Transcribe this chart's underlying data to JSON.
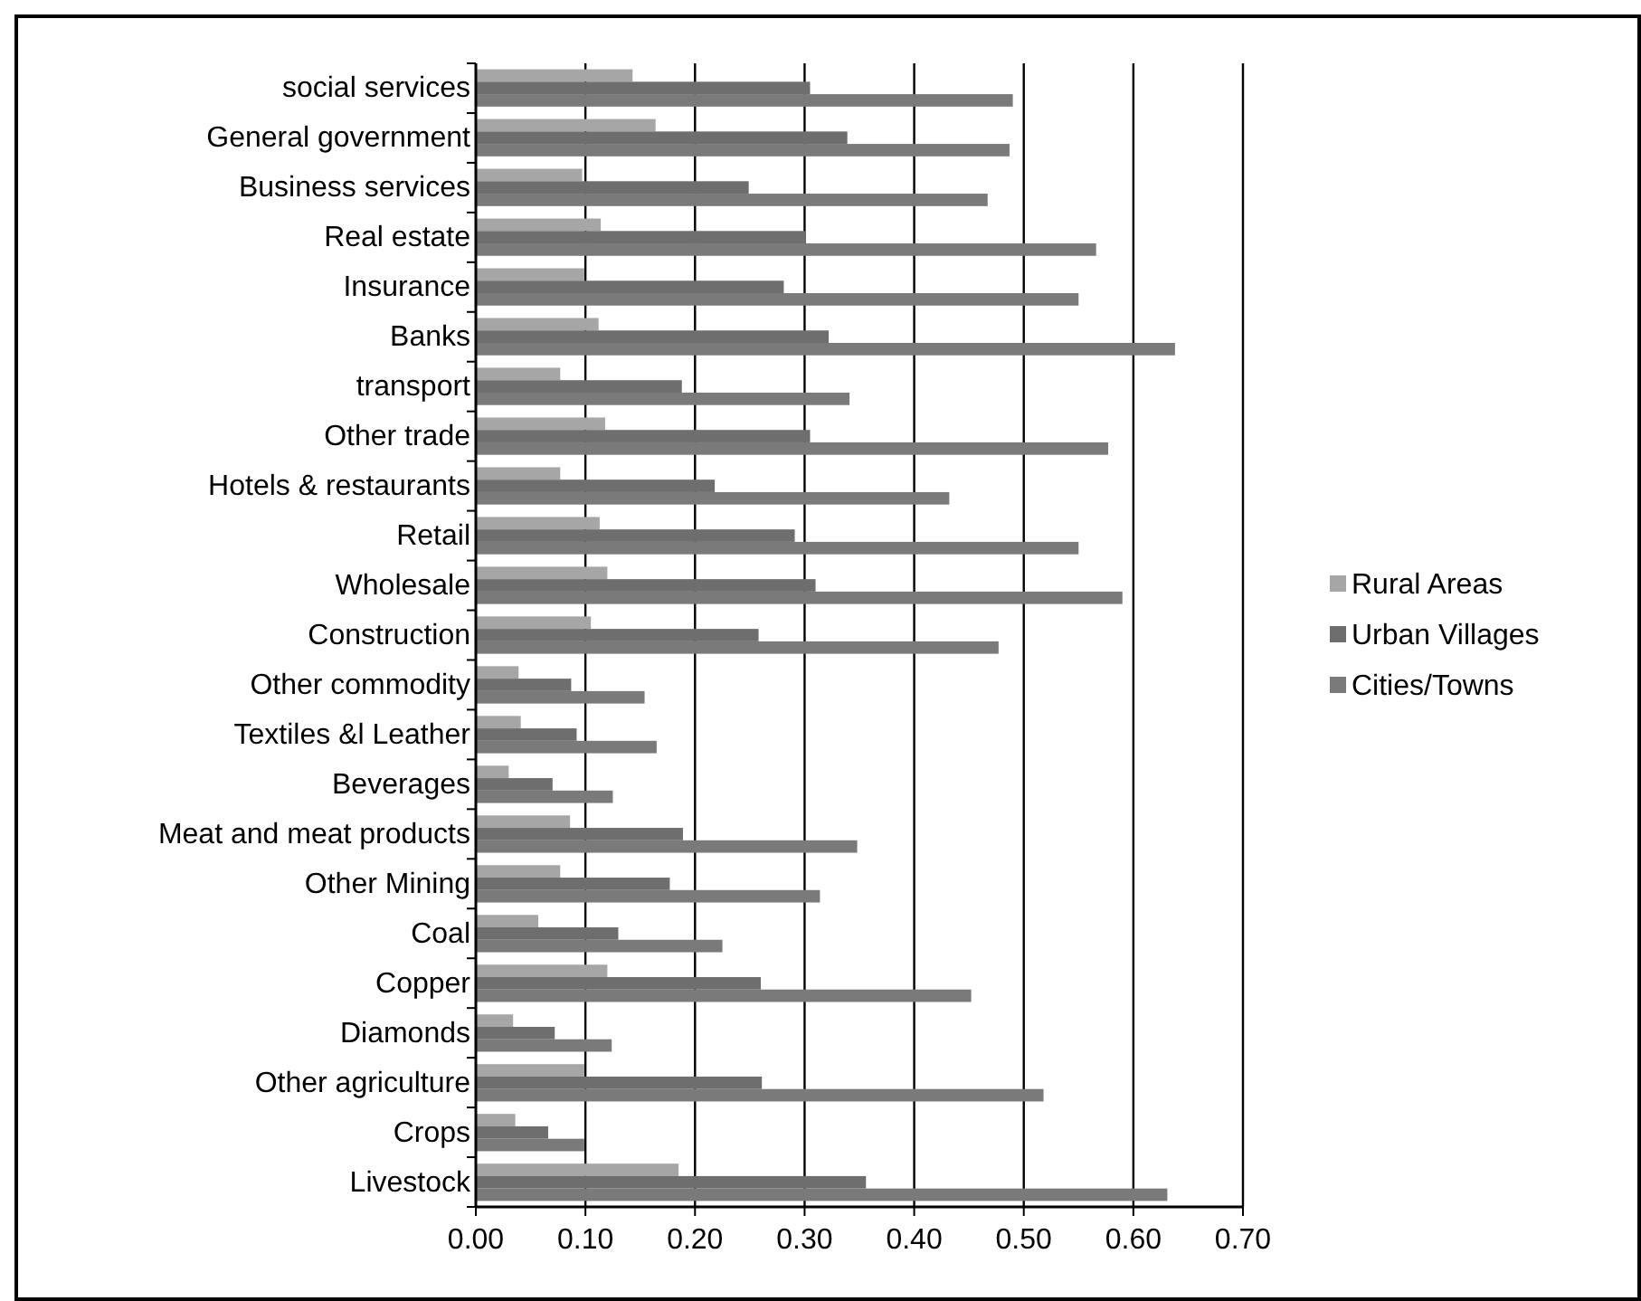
{
  "chart_data": {
    "type": "bar",
    "orientation": "horizontal",
    "categories": [
      "social services",
      "General government",
      "Business services",
      "Real estate",
      "Insurance",
      "Banks",
      "transport",
      "Other trade",
      "Hotels & restaurants",
      "Retail",
      "Wholesale",
      "Construction",
      "Other commodity",
      "Textiles &l Leather",
      "Beverages",
      "Meat and meat products",
      "Other Mining",
      "Coal",
      "Copper",
      "Diamonds",
      "Other agriculture",
      "Crops",
      "Livestock"
    ],
    "series": [
      {
        "name": "Rural Areas",
        "color": "#a6a6a6",
        "values": [
          0.143,
          0.164,
          0.097,
          0.114,
          0.099,
          0.112,
          0.077,
          0.118,
          0.077,
          0.113,
          0.12,
          0.105,
          0.039,
          0.041,
          0.03,
          0.086,
          0.077,
          0.057,
          0.12,
          0.034,
          0.099,
          0.036,
          0.185
        ]
      },
      {
        "name": "Urban Villages",
        "color": "#6e6e6e",
        "values": [
          0.305,
          0.339,
          0.249,
          0.301,
          0.281,
          0.322,
          0.188,
          0.305,
          0.218,
          0.291,
          0.31,
          0.258,
          0.087,
          0.092,
          0.07,
          0.189,
          0.177,
          0.13,
          0.26,
          0.072,
          0.261,
          0.066,
          0.356
        ]
      },
      {
        "name": "Cities/Towns",
        "color": "#7a7a7a",
        "values": [
          0.49,
          0.487,
          0.467,
          0.566,
          0.55,
          0.638,
          0.341,
          0.577,
          0.432,
          0.55,
          0.59,
          0.477,
          0.154,
          0.165,
          0.125,
          0.348,
          0.314,
          0.225,
          0.452,
          0.124,
          0.518,
          0.099,
          0.631
        ]
      }
    ],
    "xlim": [
      0,
      0.7
    ],
    "xticks": [
      {
        "value": 0,
        "label": "0.00"
      },
      {
        "value": 0.1,
        "label": "0.10"
      },
      {
        "value": 0.2,
        "label": "0.20"
      },
      {
        "value": 0.3,
        "label": "0.30"
      },
      {
        "value": 0.4,
        "label": "0.40"
      },
      {
        "value": 0.5,
        "label": "0.50"
      },
      {
        "value": 0.6,
        "label": "0.60"
      },
      {
        "value": 0.7,
        "label": "0.70"
      }
    ],
    "grid": "x",
    "legend": "right"
  }
}
